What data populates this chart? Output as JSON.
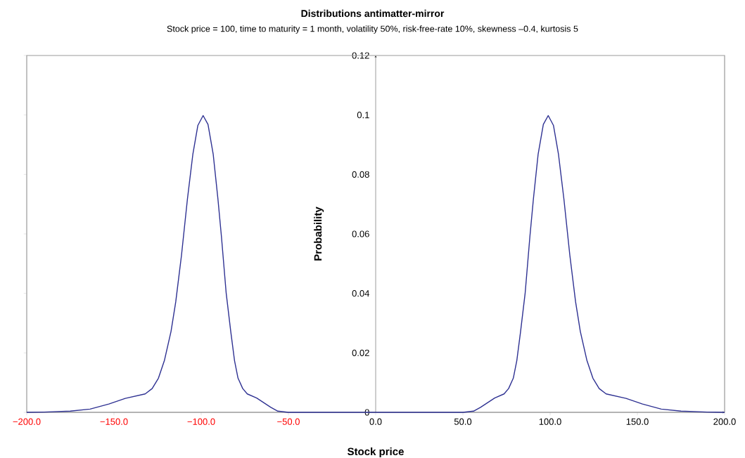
{
  "chart_data": {
    "type": "line",
    "title": "Distributions antimatter-mirror",
    "subtitle": "Stock price = 100, time to maturity = 1 month, volatility 50%, risk-free-rate 10%, skewness –0.4, kurtosis 5",
    "xlabel": "Stock price",
    "ylabel": "Probability",
    "series": [
      {
        "color": "#2e3192",
        "x": [
          -200,
          -190,
          -175,
          -163.7,
          -152.9,
          -143.5,
          -132.1,
          -128.1,
          -124.5,
          -121.1,
          -117.3,
          -114.6,
          -111.3,
          -107.9,
          -104.8,
          -101.9,
          -98.9,
          -96.1,
          -93.1,
          -90.4,
          -88.4,
          -85.7,
          -83,
          -80.9,
          -78.9,
          -76.2,
          -73.6,
          -68.2,
          -60.1,
          -56.1,
          -50,
          0,
          50,
          56.1,
          60.1,
          68.2,
          73.6,
          76.2,
          78.9,
          80.9,
          83,
          85.7,
          88.4,
          90.4,
          93.1,
          96.1,
          98.9,
          101.9,
          104.8,
          107.9,
          111.3,
          114.6,
          117.3,
          121.1,
          124.5,
          128.1,
          132.1,
          143.5,
          152.9,
          163.7,
          175,
          190,
          200
        ],
        "values": [
          0,
          0.0001,
          0.0004,
          0.0011,
          0.0028,
          0.0047,
          0.0062,
          0.008,
          0.0115,
          0.0174,
          0.0272,
          0.0371,
          0.0528,
          0.0717,
          0.0867,
          0.0965,
          0.0998,
          0.0968,
          0.0867,
          0.0717,
          0.0591,
          0.0402,
          0.0269,
          0.0174,
          0.0115,
          0.008,
          0.0062,
          0.0048,
          0.0017,
          0.0004,
          0,
          0,
          0,
          0.0004,
          0.0017,
          0.0048,
          0.0062,
          0.008,
          0.0115,
          0.0174,
          0.0269,
          0.0402,
          0.0591,
          0.0717,
          0.0867,
          0.0968,
          0.0998,
          0.0965,
          0.0867,
          0.0717,
          0.0528,
          0.0371,
          0.0272,
          0.0174,
          0.0115,
          0.008,
          0.0062,
          0.0047,
          0.0028,
          0.0011,
          0.0004,
          0.0001,
          0
        ]
      }
    ],
    "xlim": [
      -200,
      200
    ],
    "ylim": [
      0,
      0.12
    ],
    "xticks": [
      {
        "value": -200,
        "label": "−200.0"
      },
      {
        "value": -150,
        "label": "−150.0"
      },
      {
        "value": -100,
        "label": "−100.0"
      },
      {
        "value": -50,
        "label": "−50.0"
      },
      {
        "value": 0,
        "label": "0.0"
      },
      {
        "value": 50,
        "label": "50.0"
      },
      {
        "value": 100,
        "label": "100.0"
      },
      {
        "value": 150,
        "label": "150.0"
      },
      {
        "value": 200,
        "label": "200.0"
      }
    ],
    "yticks": [
      0,
      0.02,
      0.04,
      0.06,
      0.08,
      0.1,
      0.12
    ]
  }
}
